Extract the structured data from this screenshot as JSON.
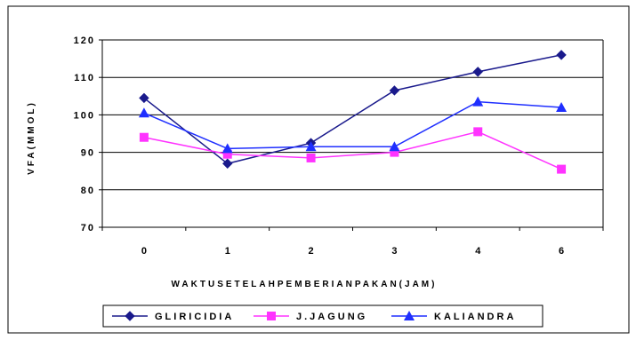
{
  "chart_data": {
    "type": "line",
    "categories": [
      "0",
      "1",
      "2",
      "3",
      "4",
      "6"
    ],
    "ylabel": "VFA(MMOL)",
    "xlabel": "WAKTUSETELAHPEMBERIANPAKAN(JAM)",
    "ylim": [
      70,
      120
    ],
    "yticks": [
      "70",
      "80",
      "90",
      "100",
      "110",
      "120"
    ],
    "grid": true,
    "legend_position": "bottom",
    "series": [
      {
        "name": "GLIRICIDIA",
        "color": "#1a1a8c",
        "marker": "diamond",
        "values": [
          104.5,
          87,
          92.5,
          106.5,
          111.5,
          116
        ]
      },
      {
        "name": "J.JAGUNG",
        "color": "#ff33ff",
        "marker": "square",
        "values": [
          94,
          89.5,
          88.5,
          90,
          95.5,
          85.5
        ]
      },
      {
        "name": "KALIANDRA",
        "color": "#1f2fff",
        "marker": "triangle",
        "values": [
          100.5,
          91,
          91.5,
          91.5,
          103.5,
          102
        ]
      }
    ]
  }
}
